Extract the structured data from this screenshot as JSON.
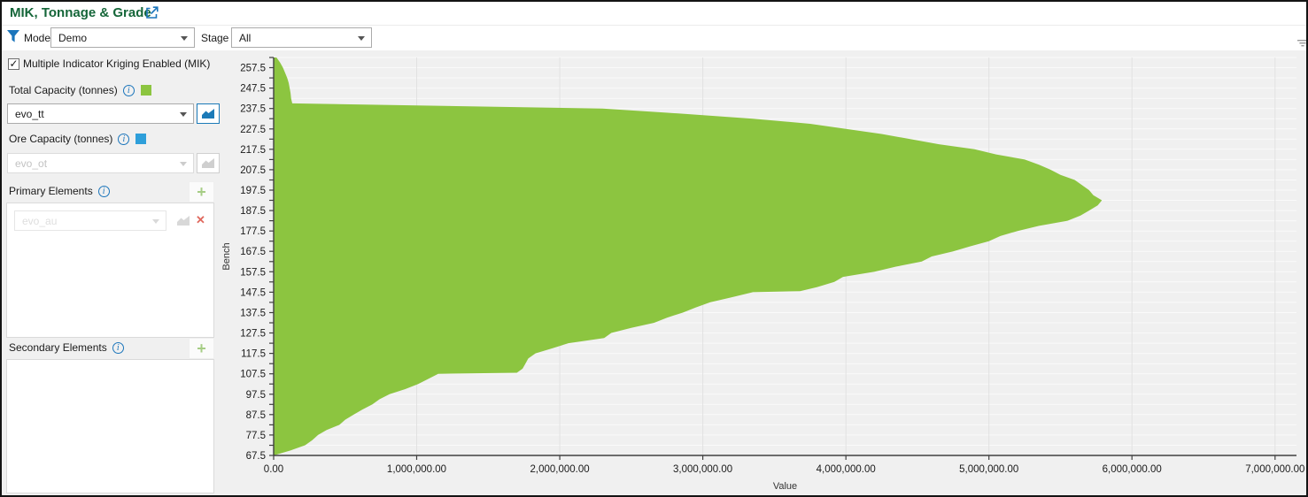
{
  "header": {
    "title": "MIK, Tonnage & Grade",
    "title_color": "#156639",
    "accent_blue": "#1b75bb"
  },
  "filters": {
    "model": {
      "label": "Model",
      "value": "Demo"
    },
    "stage": {
      "label": "Stage",
      "value": "All"
    }
  },
  "sidebar": {
    "mik_checkbox": {
      "label": "Multiple Indicator Kriging Enabled (MIK)",
      "checked": true
    },
    "total_capacity": {
      "label": "Total Capacity (tonnes)",
      "swatch_color": "#8cc540",
      "value": "evo_tt",
      "enabled": true
    },
    "ore_capacity": {
      "label": "Ore Capacity (tonnes)",
      "swatch_color": "#2e9fda",
      "value": "evo_ot",
      "enabled": false
    },
    "primary_elements": {
      "label": "Primary Elements",
      "row_value": "evo_au",
      "row_enabled": false
    },
    "secondary_elements": {
      "label": "Secondary Elements"
    }
  },
  "icons": {
    "checkmark": "✓",
    "info": "i",
    "add": "+",
    "close": "✕",
    "external_link": "open-in-new-window",
    "filter": "funnel",
    "chart_button": "mini-area-chart",
    "splitter_grip": "collapse-grip"
  },
  "chart_data": {
    "type": "area",
    "title": "",
    "xlabel": "Value",
    "ylabel": "Bench",
    "xlim": [
      0,
      7150000
    ],
    "ylim": [
      67.5,
      262.5
    ],
    "grid": true,
    "legend": "none",
    "x_ticks": [
      {
        "value": 0,
        "label": "0.00"
      },
      {
        "value": 1000000,
        "label": "1,000,000.00"
      },
      {
        "value": 2000000,
        "label": "2,000,000.00"
      },
      {
        "value": 3000000,
        "label": "3,000,000.00"
      },
      {
        "value": 4000000,
        "label": "4,000,000.00"
      },
      {
        "value": 5000000,
        "label": "5,000,000.00"
      },
      {
        "value": 6000000,
        "label": "6,000,000.00"
      },
      {
        "value": 7000000,
        "label": "7,000,000.00"
      }
    ],
    "y_major_ticks": [
      {
        "value": 257.5,
        "label": "257.5"
      },
      {
        "value": 247.5,
        "label": "247.5"
      },
      {
        "value": 237.5,
        "label": "237.5"
      },
      {
        "value": 227.5,
        "label": "227.5"
      },
      {
        "value": 217.5,
        "label": "217.5"
      },
      {
        "value": 207.5,
        "label": "207.5"
      },
      {
        "value": 197.5,
        "label": "197.5"
      },
      {
        "value": 187.5,
        "label": "187.5"
      },
      {
        "value": 177.5,
        "label": "177.5"
      },
      {
        "value": 167.5,
        "label": "167.5"
      },
      {
        "value": 157.5,
        "label": "157.5"
      },
      {
        "value": 147.5,
        "label": "147.5"
      },
      {
        "value": 137.5,
        "label": "137.5"
      },
      {
        "value": 127.5,
        "label": "127.5"
      },
      {
        "value": 117.5,
        "label": "117.5"
      },
      {
        "value": 107.5,
        "label": "107.5"
      },
      {
        "value": 97.5,
        "label": "97.5"
      },
      {
        "value": 87.5,
        "label": "87.5"
      },
      {
        "value": 77.5,
        "label": "77.5"
      },
      {
        "value": 67.5,
        "label": "67.5"
      }
    ],
    "y_minor_step": 5,
    "series": [
      {
        "name": "Total Capacity (tonnes)",
        "color": "#8cc540",
        "points": [
          [
            262.5,
            20000
          ],
          [
            260,
            45000
          ],
          [
            257.5,
            65000
          ],
          [
            255,
            80000
          ],
          [
            252.5,
            95000
          ],
          [
            250,
            105000
          ],
          [
            247.5,
            112000
          ],
          [
            245,
            118000
          ],
          [
            242.5,
            122000
          ],
          [
            240,
            130000
          ],
          [
            237.5,
            2300000
          ],
          [
            235,
            2850000
          ],
          [
            232.5,
            3350000
          ],
          [
            230,
            3750000
          ],
          [
            227.5,
            4000000
          ],
          [
            225,
            4250000
          ],
          [
            222.5,
            4450000
          ],
          [
            220,
            4650000
          ],
          [
            217.5,
            4900000
          ],
          [
            215,
            5050000
          ],
          [
            212.5,
            5250000
          ],
          [
            210,
            5350000
          ],
          [
            207.5,
            5430000
          ],
          [
            205,
            5500000
          ],
          [
            202.5,
            5600000
          ],
          [
            200,
            5650000
          ],
          [
            197.5,
            5700000
          ],
          [
            195,
            5730000
          ],
          [
            192.5,
            5790000
          ],
          [
            190,
            5760000
          ],
          [
            187.5,
            5700000
          ],
          [
            185,
            5640000
          ],
          [
            182.5,
            5550000
          ],
          [
            180,
            5350000
          ],
          [
            177.5,
            5200000
          ],
          [
            175,
            5080000
          ],
          [
            172.5,
            5000000
          ],
          [
            170,
            4870000
          ],
          [
            167.5,
            4750000
          ],
          [
            165,
            4600000
          ],
          [
            162.5,
            4530000
          ],
          [
            160,
            4350000
          ],
          [
            157.5,
            4200000
          ],
          [
            155,
            3980000
          ],
          [
            152.5,
            3920000
          ],
          [
            150,
            3800000
          ],
          [
            148,
            3680000
          ],
          [
            147.5,
            3350000
          ],
          [
            145,
            3200000
          ],
          [
            142.5,
            3050000
          ],
          [
            140,
            2950000
          ],
          [
            137.5,
            2860000
          ],
          [
            135,
            2750000
          ],
          [
            132.5,
            2660000
          ],
          [
            130,
            2500000
          ],
          [
            127.5,
            2360000
          ],
          [
            125,
            2310000
          ],
          [
            122.5,
            2060000
          ],
          [
            120,
            1950000
          ],
          [
            117.5,
            1830000
          ],
          [
            115,
            1780000
          ],
          [
            112.5,
            1760000
          ],
          [
            110,
            1740000
          ],
          [
            108,
            1700000
          ],
          [
            107.5,
            1150000
          ],
          [
            105,
            1080000
          ],
          [
            102.5,
            1010000
          ],
          [
            100,
            920000
          ],
          [
            97.5,
            810000
          ],
          [
            95,
            740000
          ],
          [
            92.5,
            690000
          ],
          [
            90,
            620000
          ],
          [
            87.5,
            560000
          ],
          [
            85,
            500000
          ],
          [
            82.5,
            460000
          ],
          [
            80,
            370000
          ],
          [
            77.5,
            310000
          ],
          [
            75,
            270000
          ],
          [
            72.5,
            220000
          ],
          [
            70,
            120000
          ],
          [
            67.5,
            0
          ]
        ]
      }
    ]
  }
}
